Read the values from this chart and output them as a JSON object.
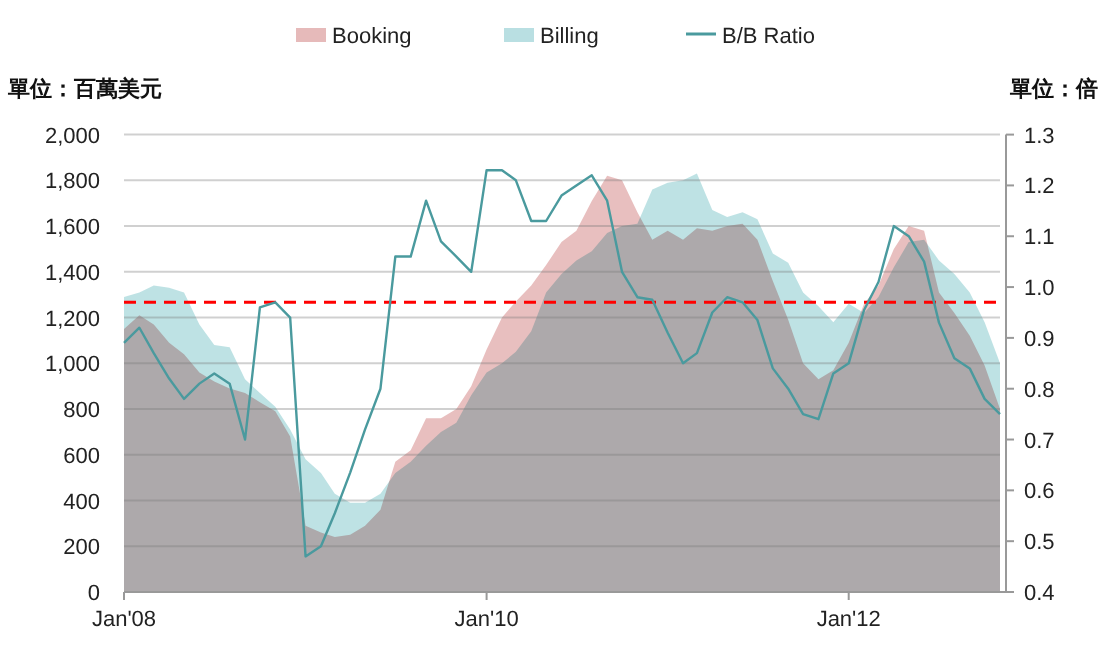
{
  "chart_data": {
    "type": "area",
    "ylabel": "單位：百萬美元",
    "y2label": "單位：倍",
    "x": [
      "2008-01",
      "2008-02",
      "2008-03",
      "2008-04",
      "2008-05",
      "2008-06",
      "2008-07",
      "2008-08",
      "2008-09",
      "2008-10",
      "2008-11",
      "2008-12",
      "2009-01",
      "2009-02",
      "2009-03",
      "2009-04",
      "2009-05",
      "2009-06",
      "2009-07",
      "2009-08",
      "2009-09",
      "2009-10",
      "2009-11",
      "2009-12",
      "2010-01",
      "2010-02",
      "2010-03",
      "2010-04",
      "2010-05",
      "2010-06",
      "2010-07",
      "2010-08",
      "2010-09",
      "2010-10",
      "2010-11",
      "2010-12",
      "2011-01",
      "2011-02",
      "2011-03",
      "2011-04",
      "2011-05",
      "2011-06",
      "2011-07",
      "2011-08",
      "2011-09",
      "2011-10",
      "2011-11",
      "2011-12",
      "2012-01",
      "2012-02",
      "2012-03",
      "2012-04",
      "2012-05",
      "2012-06",
      "2012-07",
      "2012-08",
      "2012-09",
      "2012-10",
      "2012-11"
    ],
    "series": [
      {
        "name": "Booking",
        "color": "#e6baba",
        "values": [
          1150,
          1210,
          1170,
          1090,
          1040,
          960,
          920,
          890,
          870,
          830,
          790,
          680,
          290,
          260,
          240,
          250,
          290,
          360,
          570,
          620,
          760,
          760,
          800,
          900,
          1060,
          1200,
          1270,
          1340,
          1430,
          1530,
          1580,
          1710,
          1820,
          1800,
          1660,
          1540,
          1580,
          1540,
          1590,
          1580,
          1600,
          1610,
          1540,
          1360,
          1190,
          1000,
          930,
          970,
          1090,
          1260,
          1340,
          1500,
          1600,
          1580,
          1310,
          1220,
          1120,
          990,
          800
        ]
      },
      {
        "name": "Billing",
        "color": "#b9dfe2",
        "values": [
          1290,
          1310,
          1340,
          1330,
          1310,
          1170,
          1080,
          1070,
          930,
          870,
          810,
          710,
          580,
          520,
          430,
          390,
          390,
          430,
          520,
          570,
          640,
          700,
          740,
          860,
          960,
          1000,
          1050,
          1140,
          1310,
          1390,
          1450,
          1490,
          1570,
          1600,
          1610,
          1760,
          1790,
          1800,
          1830,
          1670,
          1640,
          1660,
          1630,
          1480,
          1440,
          1310,
          1250,
          1180,
          1260,
          1220,
          1290,
          1420,
          1530,
          1540,
          1450,
          1390,
          1310,
          1180,
          1000
        ]
      },
      {
        "name": "B/B Ratio",
        "type": "line",
        "axis": "y2",
        "color": "#4a9a9e",
        "values": [
          0.89,
          0.92,
          0.87,
          0.82,
          0.78,
          0.81,
          0.83,
          0.81,
          0.7,
          0.96,
          0.97,
          0.94,
          0.47,
          0.49,
          0.555,
          0.635,
          0.72,
          0.8,
          1.06,
          1.06,
          1.17,
          1.09,
          1.06,
          1.03,
          1.23,
          1.23,
          1.21,
          1.13,
          1.13,
          1.18,
          1.2,
          1.22,
          1.17,
          1.03,
          0.98,
          0.975,
          0.91,
          0.85,
          0.87,
          0.95,
          0.98,
          0.97,
          0.935,
          0.84,
          0.8,
          0.75,
          0.74,
          0.83,
          0.85,
          0.955,
          1.01,
          1.12,
          1.1,
          1.05,
          0.93,
          0.86,
          0.84,
          0.78,
          0.75
        ]
      }
    ],
    "xlim": [
      "2008-01",
      "2012-11"
    ],
    "xticks": [
      {
        "value": "2008-01",
        "label": "Jan'08"
      },
      {
        "value": "2010-01",
        "label": "Jan'10"
      },
      {
        "value": "2012-01",
        "label": "Jan'12"
      }
    ],
    "ylim": [
      0,
      2000
    ],
    "yticks": [
      0,
      200,
      400,
      600,
      800,
      {
        "value": 1000,
        "label": "1,000"
      },
      {
        "value": 1200,
        "label": "1,200"
      },
      {
        "value": 1400,
        "label": "1,400"
      },
      {
        "value": 1600,
        "label": "1,600"
      },
      {
        "value": 1800,
        "label": "1,800"
      },
      {
        "value": 2000,
        "label": "2,000"
      }
    ],
    "y2lim": [
      0.4,
      1.3
    ],
    "y2ticks": [
      0.4,
      0.5,
      0.6,
      0.7,
      0.8,
      0.9,
      {
        "value": 1.0,
        "label": "1.0"
      },
      1.1,
      1.2,
      1.3
    ],
    "ref_lines": [
      {
        "axis": "y2",
        "value": 0.97,
        "color": "#ff0000",
        "line_style": "dashed"
      }
    ],
    "grid": "y",
    "legend": "top"
  }
}
